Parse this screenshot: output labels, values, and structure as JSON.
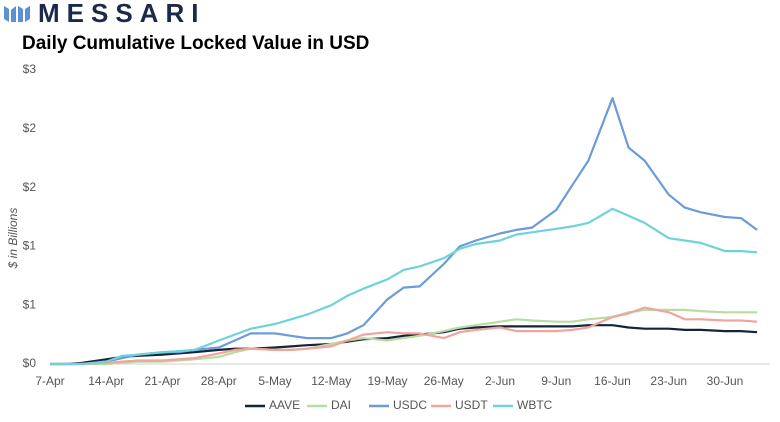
{
  "logo": "MESSARI",
  "chart_data": {
    "type": "line",
    "title": "Daily Cumulative Locked Value in USD",
    "y_label": "$ in Billions",
    "x": [
      0,
      2,
      4,
      7,
      9,
      11,
      14,
      16,
      18,
      21,
      23,
      25,
      28,
      30,
      32,
      35,
      37,
      39,
      42,
      44,
      46,
      49,
      51,
      53,
      56,
      58,
      60,
      63,
      65,
      67,
      70,
      72,
      74,
      77,
      79,
      81,
      84,
      86,
      88
    ],
    "xlim": [
      0,
      89.6
    ],
    "xticks": [
      {
        "value": 0,
        "label": "7-Apr"
      },
      {
        "value": 7,
        "label": "14-Apr"
      },
      {
        "value": 14,
        "label": "21-Apr"
      },
      {
        "value": 21,
        "label": "28-Apr"
      },
      {
        "value": 28,
        "label": "5-May"
      },
      {
        "value": 35,
        "label": "12-May"
      },
      {
        "value": 42,
        "label": "19-May"
      },
      {
        "value": 49,
        "label": "26-May"
      },
      {
        "value": 56,
        "label": "2-Jun"
      },
      {
        "value": 63,
        "label": "9-Jun"
      },
      {
        "value": 70,
        "label": "16-Jun"
      },
      {
        "value": 77,
        "label": "23-Jun"
      },
      {
        "value": 84,
        "label": "30-Jun"
      }
    ],
    "ylim": [
      0,
      2.5
    ],
    "yticks": [
      {
        "value": 0,
        "label": "$0"
      },
      {
        "value": 0.5,
        "label": "$1"
      },
      {
        "value": 1,
        "label": "$1"
      },
      {
        "value": 1.5,
        "label": "$2"
      },
      {
        "value": 2,
        "label": "$2"
      },
      {
        "value": 2.5,
        "label": "$3"
      }
    ],
    "grid": false,
    "legend": "bottom",
    "series": [
      {
        "name": "AAVE",
        "color": "#14243a",
        "values": [
          0,
          0,
          0.01,
          0.04,
          0.06,
          0.07,
          0.08,
          0.09,
          0.1,
          0.12,
          0.13,
          0.13,
          0.14,
          0.15,
          0.16,
          0.17,
          0.19,
          0.21,
          0.22,
          0.24,
          0.25,
          0.27,
          0.3,
          0.31,
          0.32,
          0.32,
          0.32,
          0.32,
          0.32,
          0.33,
          0.33,
          0.31,
          0.3,
          0.3,
          0.29,
          0.29,
          0.28,
          0.28,
          0.27
        ]
      },
      {
        "name": "DAI",
        "color": "#b8dca2",
        "values": [
          0,
          0,
          0,
          0,
          0.01,
          0.02,
          0.02,
          0.03,
          0.04,
          0.06,
          0.1,
          0.13,
          0.12,
          0.12,
          0.13,
          0.17,
          0.2,
          0.22,
          0.2,
          0.22,
          0.24,
          0.28,
          0.31,
          0.33,
          0.36,
          0.38,
          0.37,
          0.36,
          0.36,
          0.38,
          0.4,
          0.44,
          0.46,
          0.46,
          0.46,
          0.45,
          0.44,
          0.44,
          0.44
        ]
      },
      {
        "name": "USDC",
        "color": "#6b9bd9",
        "values": [
          0,
          0,
          0,
          0.02,
          0.05,
          0.08,
          0.1,
          0.1,
          0.12,
          0.14,
          0.2,
          0.26,
          0.26,
          0.24,
          0.22,
          0.22,
          0.26,
          0.33,
          0.55,
          0.65,
          0.66,
          0.85,
          1.0,
          1.05,
          1.11,
          1.14,
          1.16,
          1.31,
          1.52,
          1.73,
          2.26,
          1.84,
          1.73,
          1.44,
          1.33,
          1.29,
          1.25,
          1.24,
          1.14
        ]
      },
      {
        "name": "USDT",
        "color": "#f2a49c",
        "values": [
          0,
          0,
          0,
          0.01,
          0.02,
          0.03,
          0.03,
          0.04,
          0.05,
          0.09,
          0.12,
          0.13,
          0.12,
          0.12,
          0.13,
          0.15,
          0.2,
          0.25,
          0.27,
          0.26,
          0.26,
          0.22,
          0.27,
          0.29,
          0.31,
          0.28,
          0.28,
          0.28,
          0.29,
          0.31,
          0.4,
          0.43,
          0.48,
          0.44,
          0.38,
          0.38,
          0.37,
          0.37,
          0.36
        ]
      },
      {
        "name": "WBTC",
        "color": "#6fd2da",
        "values": [
          0,
          0,
          0,
          0.02,
          0.07,
          0.08,
          0.1,
          0.11,
          0.12,
          0.2,
          0.25,
          0.3,
          0.34,
          0.38,
          0.42,
          0.5,
          0.58,
          0.64,
          0.72,
          0.8,
          0.83,
          0.9,
          0.98,
          1.02,
          1.05,
          1.1,
          1.12,
          1.15,
          1.17,
          1.2,
          1.32,
          1.26,
          1.2,
          1.07,
          1.05,
          1.03,
          0.96,
          0.96,
          0.95
        ]
      }
    ]
  }
}
